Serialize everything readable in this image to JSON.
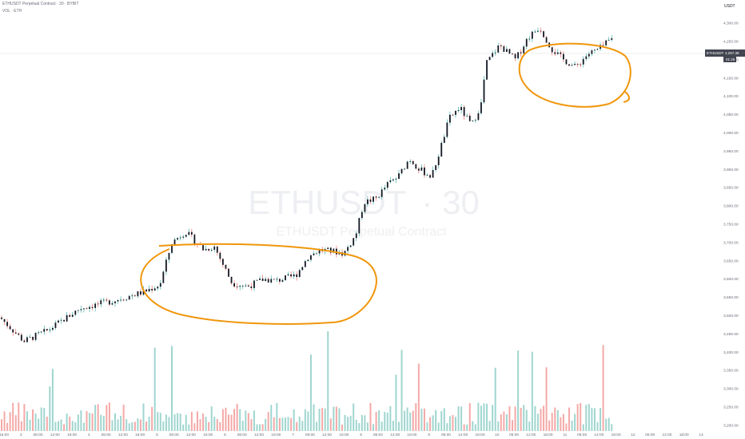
{
  "header": {
    "title": "ETHUSDT Perpetual Contract · 30 · BYBIT",
    "indicator": "VOL · ETH"
  },
  "watermark": {
    "symbol": "ETHUSDT",
    "interval": "30",
    "description": "ETHUSDT Perpetual Contract"
  },
  "price_axis": {
    "currency": "USDT",
    "ticks": [
      "4,300.00",
      "4,250.00",
      "4,200.00",
      "4,150.00",
      "4,100.00",
      "4,050.00",
      "4,000.00",
      "3,950.00",
      "3,900.00",
      "3,850.00",
      "3,800.00",
      "3,750.00",
      "3,700.00",
      "3,650.00",
      "3,600.00",
      "3,550.00",
      "3,500.00",
      "3,450.00",
      "3,400.00",
      "3,350.00",
      "3,300.00",
      "3,250.00",
      "3,200.00"
    ],
    "last_price_symbol": "ETHUSDT",
    "last_price": "4,257.38",
    "countdown": "01:26"
  },
  "time_axis": {
    "ticks": [
      "15:00",
      "3",
      "06:00",
      "12:00",
      "18:00",
      "4",
      "06:00",
      "12:00",
      "18:00",
      "5",
      "06:00",
      "12:00",
      "18:00",
      "6",
      "06:00",
      "12:00",
      "18:00",
      "7",
      "06:00",
      "12:00",
      "18:00",
      "8",
      "06:00",
      "12:00",
      "18:00",
      "9",
      "06:00",
      "12:00",
      "18:00",
      "10",
      "06:00",
      "12:00",
      "18:00",
      "11",
      "06:00",
      "12:00",
      "18:00",
      "12",
      "06:00",
      "12:00",
      "18:00",
      "13"
    ]
  },
  "colors": {
    "up": "#26a69a",
    "down": "#ef5350",
    "candle_body": "#131722",
    "volume_up": "#9fd6cf",
    "volume_down": "#f4a9a7",
    "annotation": "#f0960a",
    "grid": "#ececec"
  },
  "chart_data": {
    "type": "candlestick",
    "y_range": [
      3180,
      4320
    ],
    "key_levels": [
      {
        "x": 0,
        "close": 3495
      },
      {
        "x": 30,
        "close": 3430
      },
      {
        "x": 60,
        "close": 3460
      },
      {
        "x": 100,
        "close": 3520
      },
      {
        "x": 140,
        "close": 3540
      },
      {
        "x": 180,
        "close": 3565
      },
      {
        "x": 200,
        "close": 3585
      },
      {
        "x": 215,
        "close": 3700
      },
      {
        "x": 232,
        "close": 3730
      },
      {
        "x": 255,
        "close": 3680
      },
      {
        "x": 268,
        "close": 3690
      },
      {
        "x": 290,
        "close": 3590
      },
      {
        "x": 310,
        "close": 3580
      },
      {
        "x": 330,
        "close": 3600
      },
      {
        "x": 345,
        "close": 3595
      },
      {
        "x": 370,
        "close": 3610
      },
      {
        "x": 385,
        "close": 3660
      },
      {
        "x": 400,
        "close": 3680
      },
      {
        "x": 420,
        "close": 3675
      },
      {
        "x": 430,
        "close": 3670
      },
      {
        "x": 445,
        "close": 3720
      },
      {
        "x": 455,
        "close": 3810
      },
      {
        "x": 470,
        "close": 3820
      },
      {
        "x": 485,
        "close": 3860
      },
      {
        "x": 498,
        "close": 3880
      },
      {
        "x": 512,
        "close": 3930
      },
      {
        "x": 525,
        "close": 3900
      },
      {
        "x": 540,
        "close": 3880
      },
      {
        "x": 550,
        "close": 3950
      },
      {
        "x": 562,
        "close": 4040
      },
      {
        "x": 575,
        "close": 4070
      },
      {
        "x": 590,
        "close": 4020
      },
      {
        "x": 602,
        "close": 4080
      },
      {
        "x": 608,
        "close": 4190
      },
      {
        "x": 625,
        "close": 4240
      },
      {
        "x": 645,
        "close": 4200
      },
      {
        "x": 660,
        "close": 4260
      },
      {
        "x": 675,
        "close": 4290
      },
      {
        "x": 690,
        "close": 4230
      },
      {
        "x": 705,
        "close": 4200
      },
      {
        "x": 720,
        "close": 4180
      },
      {
        "x": 735,
        "close": 4215
      },
      {
        "x": 750,
        "close": 4230
      },
      {
        "x": 765,
        "close": 4257
      }
    ],
    "annotations": [
      "ellipse-consolidation-1",
      "ellipse-consolidation-2"
    ]
  }
}
